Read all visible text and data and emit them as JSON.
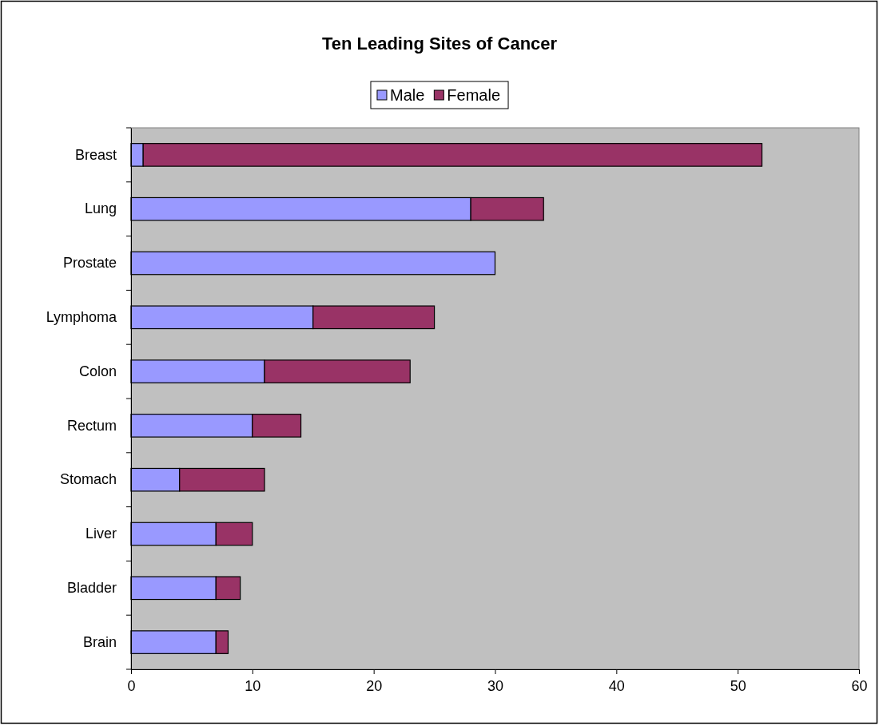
{
  "chart_data": {
    "type": "bar",
    "title": "Ten Leading Sites of Cancer",
    "orientation": "horizontal",
    "stacked": true,
    "categories": [
      "Breast",
      "Lung",
      "Prostate",
      "Lymphoma",
      "Colon",
      "Rectum",
      "Stomach",
      "Liver",
      "Bladder",
      "Brain"
    ],
    "series": [
      {
        "name": "Male",
        "color": "#9999ff",
        "values": [
          1,
          28,
          30,
          15,
          11,
          10,
          4,
          7,
          7,
          7
        ]
      },
      {
        "name": "Female",
        "color": "#993366",
        "values": [
          51,
          6,
          0,
          10,
          12,
          4,
          7,
          3,
          2,
          1
        ]
      }
    ],
    "xlim": [
      0,
      60
    ],
    "xticks": [
      0,
      10,
      20,
      30,
      40,
      50,
      60
    ],
    "grid": false,
    "legend": "top"
  }
}
